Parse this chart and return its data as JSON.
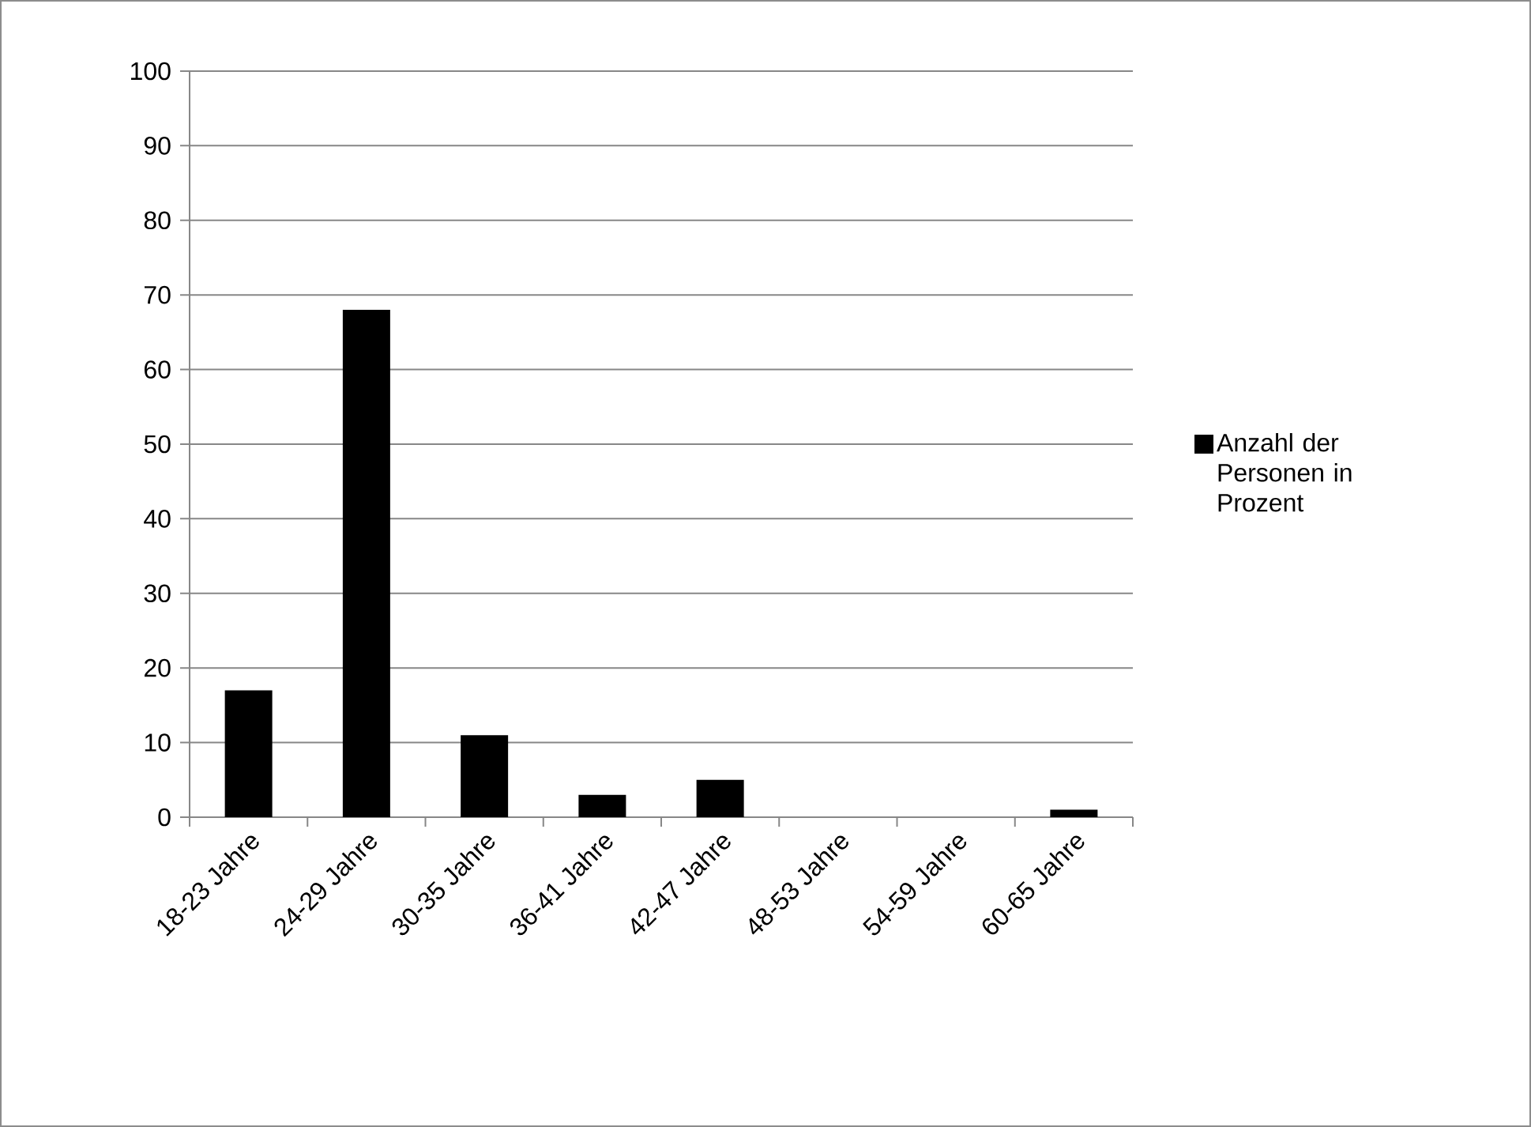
{
  "chart_data": {
    "type": "bar",
    "categories": [
      "18-23 Jahre",
      "24-29 Jahre",
      "30-35 Jahre",
      "36-41 Jahre",
      "42-47 Jahre",
      "48-53 Jahre",
      "54-59 Jahre",
      "60-65 Jahre"
    ],
    "series": [
      {
        "name": "Anzahl der Personen in Prozent",
        "color": "#000000",
        "values": [
          17,
          68,
          11,
          3,
          5,
          0,
          0,
          1
        ]
      }
    ],
    "ylim": [
      0,
      100
    ],
    "yticks": [
      0,
      10,
      20,
      30,
      40,
      50,
      60,
      70,
      80,
      90,
      100
    ],
    "grid": "y",
    "legend": "right"
  }
}
